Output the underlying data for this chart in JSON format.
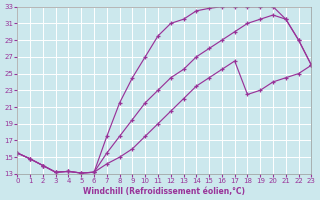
{
  "xlabel": "Windchill (Refroidissement éolien,°C)",
  "xlim": [
    0,
    23
  ],
  "ylim": [
    13,
    33
  ],
  "xticks": [
    0,
    1,
    2,
    3,
    4,
    5,
    6,
    7,
    8,
    9,
    10,
    11,
    12,
    13,
    14,
    15,
    16,
    17,
    18,
    19,
    20,
    21,
    22,
    23
  ],
  "yticks": [
    13,
    15,
    17,
    19,
    21,
    23,
    25,
    27,
    29,
    31,
    33
  ],
  "bg_color": "#cce8ed",
  "grid_color": "#ffffff",
  "line_color": "#993399",
  "curve1_x": [
    0,
    1,
    2,
    3,
    4,
    5,
    6,
    7,
    8,
    9,
    10,
    11,
    12,
    13,
    14,
    15,
    16,
    17,
    18,
    19,
    20,
    21,
    22,
    23
  ],
  "curve1_y": [
    15.5,
    14.8,
    14.0,
    13.2,
    13.3,
    13.1,
    13.2,
    17.5,
    21.5,
    24.5,
    27.0,
    29.5,
    31.0,
    31.5,
    32.5,
    32.8,
    33.0,
    33.0,
    33.0,
    33.0,
    33.0,
    31.5,
    29.0,
    26.0
  ],
  "curve2_x": [
    0,
    1,
    2,
    3,
    4,
    5,
    6,
    7,
    8,
    9,
    10,
    11,
    12,
    13,
    14,
    15,
    16,
    17,
    18,
    19,
    20,
    21,
    22,
    23
  ],
  "curve2_y": [
    15.5,
    14.8,
    14.0,
    13.2,
    13.3,
    13.1,
    13.2,
    15.5,
    17.5,
    19.5,
    21.5,
    23.0,
    24.5,
    25.5,
    27.0,
    28.0,
    29.0,
    30.0,
    31.0,
    31.5,
    32.0,
    31.5,
    29.0,
    26.0
  ],
  "curve3_x": [
    0,
    1,
    2,
    3,
    4,
    5,
    6,
    7,
    8,
    9,
    10,
    11,
    12,
    13,
    14,
    15,
    16,
    17,
    18,
    19,
    20,
    21,
    22,
    23
  ],
  "curve3_y": [
    15.5,
    14.8,
    14.0,
    13.2,
    13.3,
    13.1,
    13.2,
    14.2,
    15.0,
    16.0,
    17.5,
    19.0,
    20.5,
    22.0,
    23.5,
    24.5,
    25.5,
    26.5,
    22.5,
    23.0,
    24.0,
    24.5,
    25.0,
    26.0
  ]
}
